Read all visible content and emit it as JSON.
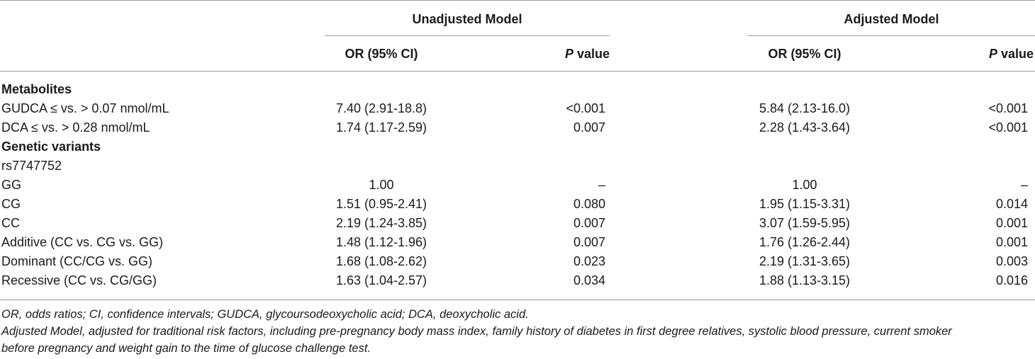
{
  "header": {
    "group1": "Unadjusted Model",
    "group2": "Adjusted Model",
    "or_label": "OR (95% CI)",
    "p_label_italic": "P",
    "p_label_rest": " value"
  },
  "rows": [
    {
      "label": "Metabolites",
      "bold": true,
      "u_or": "",
      "u_p": "",
      "a_or": "",
      "a_p": ""
    },
    {
      "label": "GUDCA ≤ vs. > 0.07 nmol/mL",
      "bold": false,
      "u_or": "7.40 (2.91-18.8)",
      "u_p": "<0.001",
      "a_or": "5.84 (2.13-16.0)",
      "a_p": "<0.001"
    },
    {
      "label": "DCA ≤ vs. > 0.28 nmol/mL",
      "bold": false,
      "u_or": "1.74 (1.17-2.59)",
      "u_p": "0.007",
      "a_or": "2.28 (1.43-3.64)",
      "a_p": "<0.001"
    },
    {
      "label": "Genetic variants",
      "bold": true,
      "u_or": "",
      "u_p": "",
      "a_or": "",
      "a_p": ""
    },
    {
      "label": "rs7747752",
      "bold": false,
      "u_or": "",
      "u_p": "",
      "a_or": "",
      "a_p": ""
    },
    {
      "label": "GG",
      "bold": false,
      "u_or": "1.00",
      "u_p": "–",
      "a_or": "1.00",
      "a_p": "–"
    },
    {
      "label": "CG",
      "bold": false,
      "u_or": "1.51 (0.95-2.41)",
      "u_p": "0.080",
      "a_or": "1.95 (1.15-3.31)",
      "a_p": "0.014"
    },
    {
      "label": "CC",
      "bold": false,
      "u_or": "2.19 (1.24-3.85)",
      "u_p": "0.007",
      "a_or": "3.07 (1.59-5.95)",
      "a_p": "0.001"
    },
    {
      "label": "Additive (CC vs. CG vs. GG)",
      "bold": false,
      "u_or": "1.48 (1.12-1.96)",
      "u_p": "0.007",
      "a_or": "1.76 (1.26-2.44)",
      "a_p": "0.001"
    },
    {
      "label": "Dominant (CC/CG vs. GG)",
      "bold": false,
      "u_or": "1.68 (1.08-2.62)",
      "u_p": "0.023",
      "a_or": "2.19 (1.31-3.65)",
      "a_p": "0.003"
    },
    {
      "label": "Recessive (CC vs. CG/GG)",
      "bold": false,
      "u_or": "1.63 (1.04-2.57)",
      "u_p": "0.034",
      "a_or": "1.88 (1.13-3.15)",
      "a_p": "0.016"
    }
  ],
  "footnotes": [
    "OR, odds ratios; CI, confidence intervals; GUDCA, glycoursodeoxycholic acid; DCA, deoxycholic acid.",
    "Adjusted Model, adjusted for traditional risk factors, including pre-pregnancy body mass index, family history of diabetes in first degree relatives, systolic blood pressure, current smoker",
    "before pregnancy and weight gain to the time of glucose challenge test."
  ]
}
